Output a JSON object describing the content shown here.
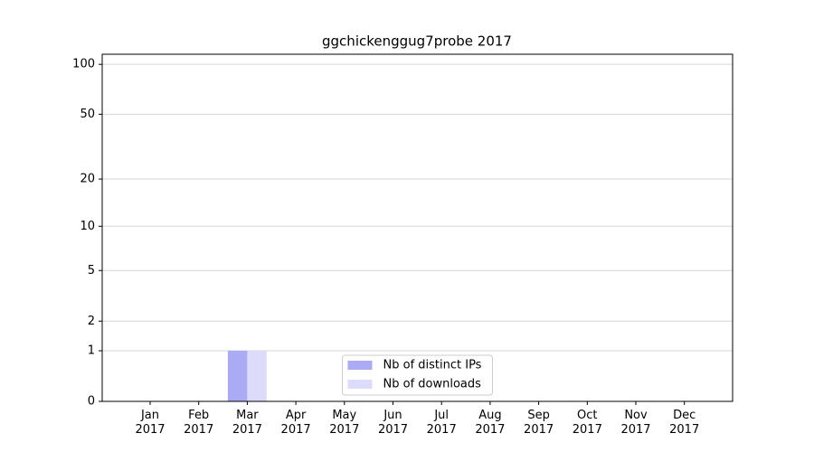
{
  "chart_data": {
    "type": "bar",
    "title": "ggchickenggug7probe 2017",
    "categories": [
      "Jan\n2017",
      "Feb\n2017",
      "Mar\n2017",
      "Apr\n2017",
      "May\n2017",
      "Jun\n2017",
      "Jul\n2017",
      "Aug\n2017",
      "Sep\n2017",
      "Oct\n2017",
      "Nov\n2017",
      "Dec\n2017"
    ],
    "series": [
      {
        "name": "Nb of distinct IPs",
        "color": "#aaaaf5",
        "values": [
          0,
          0,
          1,
          0,
          0,
          0,
          0,
          0,
          0,
          0,
          0,
          0
        ]
      },
      {
        "name": "Nb of downloads",
        "color": "#dcdcfa",
        "values": [
          0,
          0,
          1,
          0,
          0,
          0,
          0,
          0,
          0,
          0,
          0,
          0
        ]
      }
    ],
    "yscale": "log1p",
    "ylim": [
      0,
      115
    ],
    "yticks": [
      0,
      1,
      2,
      5,
      10,
      20,
      50,
      100
    ],
    "grid": true,
    "legend": "lower center"
  }
}
